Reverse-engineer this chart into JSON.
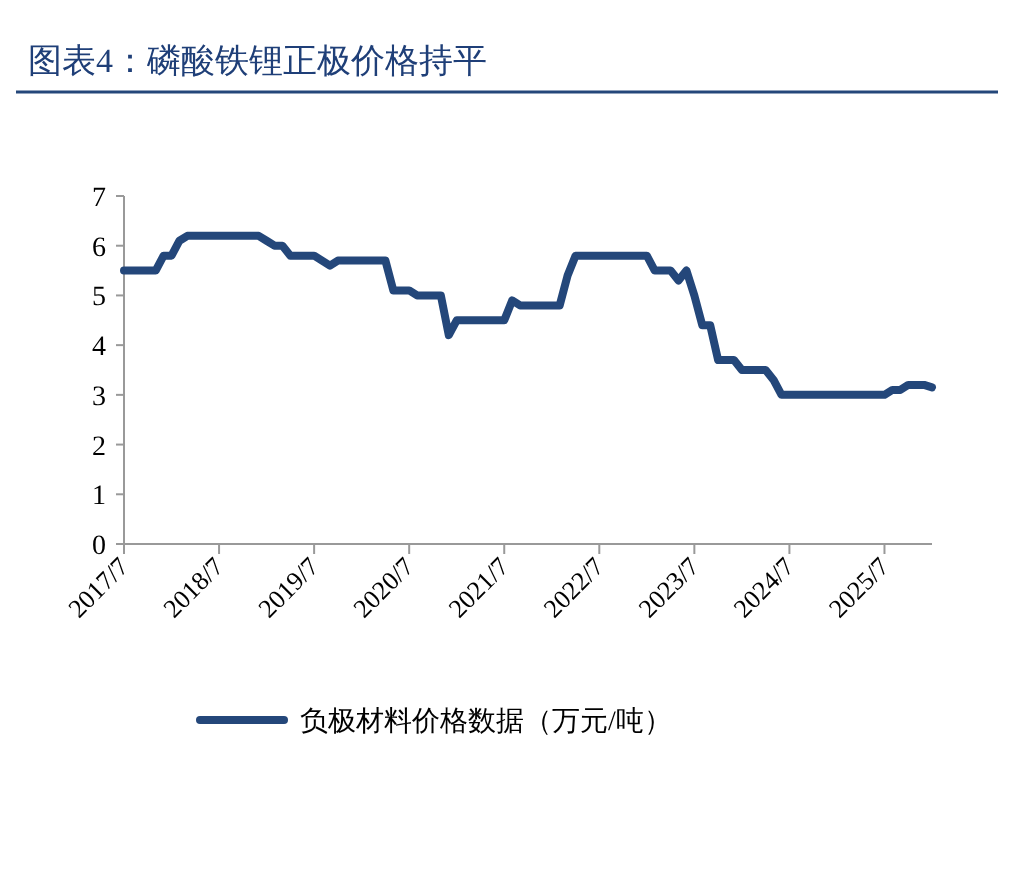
{
  "chart_data": {
    "type": "line",
    "title": "图表4：磷酸铁锂正极价格持平",
    "x": [
      "2017-07",
      "2017-11",
      "2017-12",
      "2018-01",
      "2018-02",
      "2018-03",
      "2018-12",
      "2019-01",
      "2019-02",
      "2019-03",
      "2019-04",
      "2019-07",
      "2019-08",
      "2019-09",
      "2019-10",
      "2020-04",
      "2020-05",
      "2020-07",
      "2020-08",
      "2020-11",
      "2020-12",
      "2021-01",
      "2021-07",
      "2021-08",
      "2021-09",
      "2022-02",
      "2022-03",
      "2022-04",
      "2023-01",
      "2023-02",
      "2023-04",
      "2023-05",
      "2023-06",
      "2023-07",
      "2023-08",
      "2023-09",
      "2023-10",
      "2023-12",
      "2024-01",
      "2024-04",
      "2024-05",
      "2024-06",
      "2025-07",
      "2025-08",
      "2025-09",
      "2025-10",
      "2025-12",
      "2026-01"
    ],
    "series": [
      {
        "name": "负极材料价格数据（万元/吨）",
        "color": "#24477a",
        "values": [
          5.5,
          5.5,
          5.8,
          5.8,
          6.1,
          6.2,
          6.2,
          6.1,
          6.0,
          6.0,
          5.8,
          5.8,
          5.7,
          5.6,
          5.7,
          5.7,
          5.1,
          5.1,
          5.0,
          5.0,
          4.2,
          4.5,
          4.5,
          4.9,
          4.8,
          4.8,
          5.4,
          5.8,
          5.8,
          5.5,
          5.5,
          5.3,
          5.5,
          5.0,
          4.4,
          4.4,
          3.7,
          3.7,
          3.5,
          3.5,
          3.3,
          3.0,
          3.0,
          3.1,
          3.1,
          3.2,
          3.2,
          3.15
        ]
      }
    ],
    "xlim": [
      "2017-07",
      "2026-01"
    ],
    "xticks": [
      {
        "value": "2017-07",
        "label": "2017/7"
      },
      {
        "value": "2018-07",
        "label": "2018/7"
      },
      {
        "value": "2019-07",
        "label": "2019/7"
      },
      {
        "value": "2020-07",
        "label": "2020/7"
      },
      {
        "value": "2021-07",
        "label": "2021/7"
      },
      {
        "value": "2022-07",
        "label": "2022/7"
      },
      {
        "value": "2023-07",
        "label": "2023/7"
      },
      {
        "value": "2024-07",
        "label": "2024/7"
      },
      {
        "value": "2025-07",
        "label": "2025/7"
      }
    ],
    "ylim": [
      0,
      7
    ],
    "yticks": [
      0,
      1,
      2,
      3,
      4,
      5,
      6,
      7
    ],
    "grid": false,
    "legend": "bottom",
    "marker": "none",
    "line_style": "solid"
  }
}
